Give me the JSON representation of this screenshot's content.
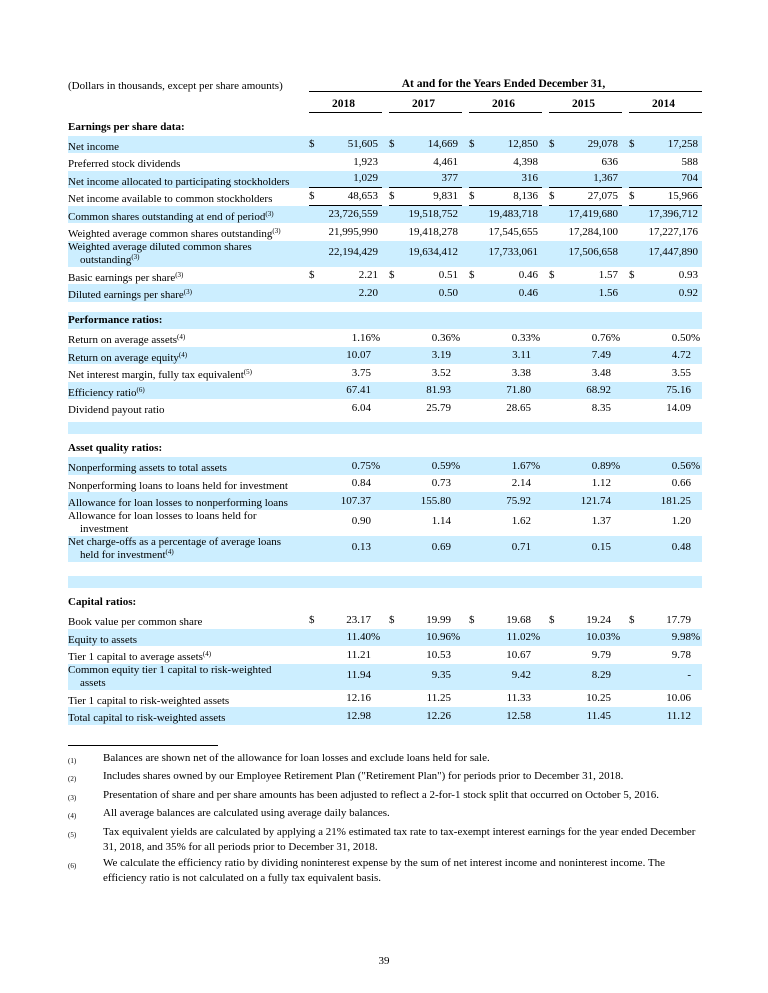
{
  "page_number": "39",
  "colors": {
    "highlight": "#cceeff",
    "text": "#000000",
    "rule": "#000000"
  },
  "table": {
    "caption": "(Dollars in thousands, except per share amounts)",
    "header_title": "At and for the Years Ended December 31,",
    "years": [
      "2018",
      "2017",
      "2016",
      "2015",
      "2014"
    ],
    "sections": [
      {
        "heading": "Earnings per share data:",
        "heading_bg": "white",
        "pct_slot": false,
        "spacers_before": [
          {
            "h": 5,
            "bg": "white"
          }
        ],
        "rows": [
          {
            "label": "Net income",
            "currency": "$",
            "bg": "blue",
            "values": [
              "51,605",
              "14,669",
              "12,850",
              "29,078",
              "17,258"
            ]
          },
          {
            "label": "Preferred stock dividends",
            "bg": "white",
            "values": [
              "1,923",
              "4,461",
              "4,398",
              "636",
              "588"
            ]
          },
          {
            "label": "Net income allocated to participating stockholders",
            "bg": "blue",
            "rule_below": true,
            "values": [
              "1,029",
              "377",
              "316",
              "1,367",
              "704"
            ]
          },
          {
            "label": "Net income available to common stockholders",
            "currency": "$",
            "bg": "white",
            "rule_below": true,
            "values": [
              "48,653",
              "9,831",
              "8,136",
              "27,075",
              "15,966"
            ]
          },
          {
            "label": "Common shares outstanding at end of period",
            "sup": "(3)",
            "bg": "blue",
            "values": [
              "23,726,559",
              "19,518,752",
              "19,483,718",
              "17,419,680",
              "17,396,712"
            ]
          },
          {
            "label": "Weighted average common shares outstanding",
            "sup": "(3)",
            "bg": "white",
            "values": [
              "21,995,990",
              "19,418,278",
              "17,545,655",
              "17,284,100",
              "17,227,176"
            ]
          },
          {
            "label": "Weighted average diluted common shares",
            "label2": "outstanding",
            "sup2": "(3)",
            "bg": "blue",
            "values": [
              "22,194,429",
              "19,634,412",
              "17,733,061",
              "17,506,658",
              "17,447,890"
            ]
          },
          {
            "label": "Basic earnings per share",
            "sup": "(3)",
            "currency": "$",
            "bg": "white",
            "values": [
              "2.21",
              "0.51",
              "0.46",
              "1.57",
              "0.93"
            ]
          },
          {
            "label": "Diluted earnings per share",
            "sup": "(3)",
            "bg": "blue",
            "values": [
              "2.20",
              "0.50",
              "0.46",
              "1.56",
              "0.92"
            ]
          }
        ]
      },
      {
        "heading": "Performance ratios:",
        "heading_bg": "blue",
        "pct_slot": true,
        "spacers_before": [
          {
            "h": 10,
            "bg": "white"
          }
        ],
        "rows": [
          {
            "label": "Return on average assets",
            "sup": "(4)",
            "bg": "white",
            "values": [
              "1.16%",
              "0.36%",
              "0.33%",
              "0.76%",
              "0.50%"
            ]
          },
          {
            "label": "Return on average equity",
            "sup": "(4)",
            "bg": "blue",
            "values": [
              "10.07",
              "3.19",
              "3.11",
              "7.49",
              "4.72"
            ]
          },
          {
            "label": "Net interest margin, fully tax equivalent",
            "sup": "(5)",
            "bg": "white",
            "values": [
              "3.75",
              "3.52",
              "3.38",
              "3.48",
              "3.55"
            ]
          },
          {
            "label": "Efficiency ratio",
            "sup": "(6)",
            "bg": "blue",
            "values": [
              "67.41",
              "81.93",
              "71.80",
              "68.92",
              "75.16"
            ]
          },
          {
            "label": "Dividend payout ratio",
            "bg": "white",
            "values": [
              "6.04",
              "25.79",
              "28.65",
              "8.35",
              "14.09"
            ]
          }
        ]
      },
      {
        "heading": "Asset quality ratios:",
        "heading_bg": "white",
        "pct_slot": true,
        "spacers_before": [
          {
            "h": 5,
            "bg": "white"
          },
          {
            "h": 12,
            "bg": "blue"
          },
          {
            "h": 6,
            "bg": "white"
          }
        ],
        "rows": [
          {
            "label": "Nonperforming assets to total assets",
            "bg": "blue",
            "values": [
              "0.75%",
              "0.59%",
              "1.67%",
              "0.89%",
              "0.56%"
            ]
          },
          {
            "label": "Nonperforming loans to loans held for investment",
            "bg": "white",
            "values": [
              "0.84",
              "0.73",
              "2.14",
              "1.12",
              "0.66"
            ]
          },
          {
            "label": "Allowance for loan losses to nonperforming loans",
            "bg": "blue",
            "values": [
              "107.37",
              "155.80",
              "75.92",
              "121.74",
              "181.25"
            ]
          },
          {
            "label": "Allowance for loan losses to loans held for",
            "label2": "investment",
            "bg": "white",
            "values": [
              "0.90",
              "1.14",
              "1.62",
              "1.37",
              "1.20"
            ]
          },
          {
            "label": "Net charge-offs as a percentage of average loans",
            "label2": "held for investment",
            "sup2": "(4)",
            "bg": "blue",
            "values": [
              "0.13",
              "0.69",
              "0.71",
              "0.15",
              "0.48"
            ]
          }
        ]
      },
      {
        "heading": "Capital ratios:",
        "heading_bg": "white",
        "pct_slot": true,
        "spacers_before": [
          {
            "h": 14,
            "bg": "white"
          },
          {
            "h": 12,
            "bg": "blue"
          },
          {
            "h": 6,
            "bg": "white"
          }
        ],
        "rows": [
          {
            "label": "Book value per common share",
            "currency": "$",
            "bg": "white",
            "values": [
              "23.17",
              "19.99",
              "19.68",
              "19.24",
              "17.79"
            ]
          },
          {
            "label": "Equity to assets",
            "bg": "blue",
            "values": [
              "11.40%",
              "10.96%",
              "11.02%",
              "10.03%",
              "9.98%"
            ]
          },
          {
            "label": "Tier 1 capital to average assets",
            "sup": "(4)",
            "bg": "white",
            "values": [
              "11.21",
              "10.53",
              "10.67",
              "9.79",
              "9.78"
            ]
          },
          {
            "label": "Common equity tier 1 capital to risk-weighted",
            "label2": "assets",
            "bg": "blue",
            "values": [
              "11.94",
              "9.35",
              "9.42",
              "8.29",
              "-"
            ]
          },
          {
            "label": "Tier 1 capital to risk-weighted assets",
            "bg": "white",
            "values": [
              "12.16",
              "11.25",
              "11.33",
              "10.25",
              "10.06"
            ]
          },
          {
            "label": "Total capital to risk-weighted assets",
            "bg": "blue",
            "values": [
              "12.98",
              "12.26",
              "12.58",
              "11.45",
              "11.12"
            ]
          }
        ]
      }
    ]
  },
  "footnotes": [
    {
      "marker": "(1)",
      "text": "Balances are shown net of the allowance for loan losses and exclude loans held for sale."
    },
    {
      "marker": "(2)",
      "text": "Includes shares owned by our Employee Retirement Plan (\"Retirement Plan\") for periods prior to December 31, 2018."
    },
    {
      "marker": "(3)",
      "text": "Presentation of share and per share amounts has been adjusted to reflect a 2-for-1 stock split that occurred on October 5, 2016."
    },
    {
      "marker": "(4)",
      "text": "All average balances are calculated using average daily balances."
    },
    {
      "marker": "(5)",
      "text": "Tax equivalent yields are calculated by applying a 21% estimated tax rate to tax-exempt interest earnings for the year ended December 31, 2018, and 35% for all periods prior to December 31, 2018."
    },
    {
      "marker": "(6)",
      "text": "We calculate the efficiency ratio by dividing noninterest expense by the sum of net interest income and noninterest income. The efficiency ratio is not calculated on a fully tax equivalent basis."
    }
  ]
}
